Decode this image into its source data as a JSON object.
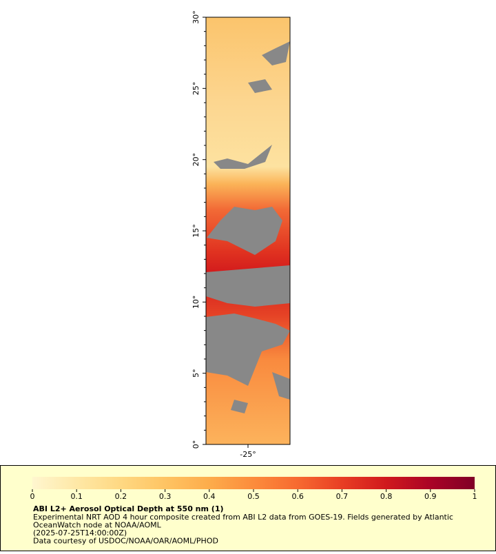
{
  "map": {
    "lat_labels": [
      "0°",
      "5°",
      "10°",
      "15°",
      "20°",
      "25°",
      "30°"
    ],
    "lon_label": "-25°"
  },
  "colorbar": {
    "ticks": [
      0,
      0.1,
      0.2,
      0.3,
      0.4,
      0.5,
      0.6,
      0.7,
      0.8,
      0.9,
      1
    ],
    "colors": [
      "#fff6cf",
      "#fee8a6",
      "#fed882",
      "#fec463",
      "#fdac4b",
      "#fc8c3c",
      "#f76a30",
      "#e83e24",
      "#d0191d",
      "#aa0326",
      "#800026"
    ]
  },
  "caption": {
    "title": "ABI L2+ Aerosol Optical Depth at 550 nm (1)",
    "lines": [
      "Experimental NRT AOD 4 hour composite created from ABI L2 data from GOES-19. Fields generated by Atlantic",
      "OceanWatch node at NOAA/AOML",
      "(2025-07-25T14:00:00Z)",
      "Data courtesy of USDOC/NOAA/OAR/AOML/PHOD"
    ]
  }
}
